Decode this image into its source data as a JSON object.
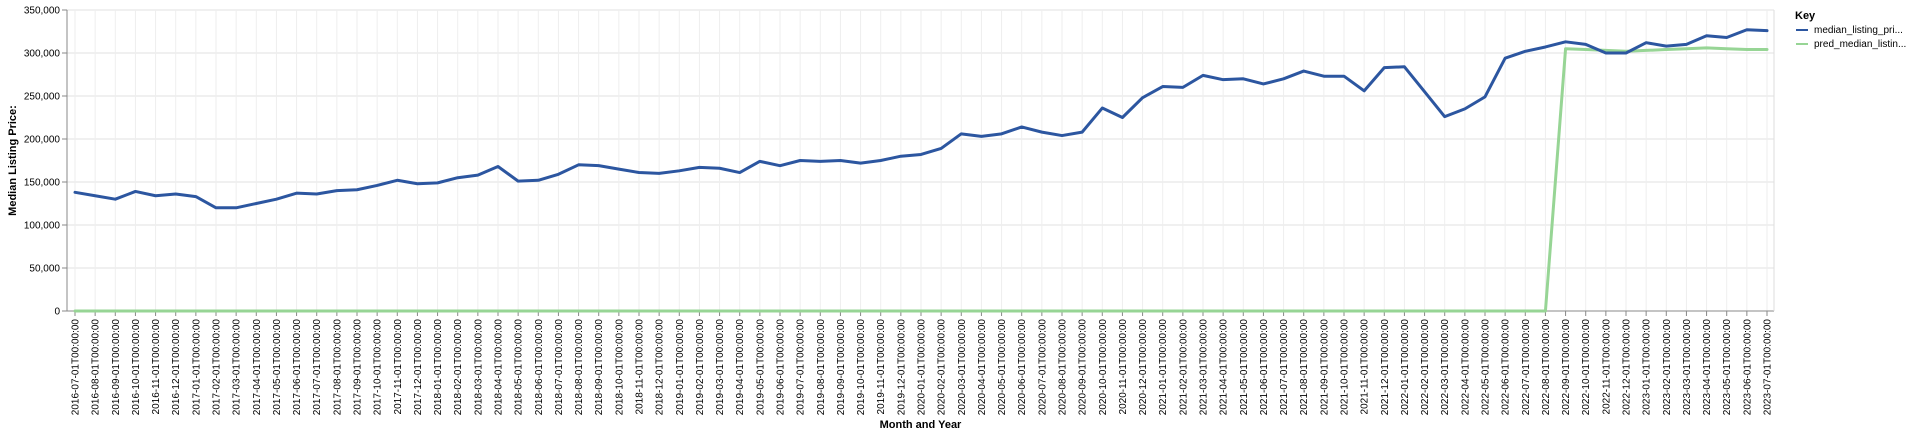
{
  "chart_data": {
    "type": "line",
    "xlabel": "Month and Year",
    "ylabel": "Median Listing Price:",
    "ylim": [
      0,
      350000
    ],
    "y_ticks": [
      0,
      50000,
      100000,
      150000,
      200000,
      250000,
      300000,
      350000
    ],
    "y_tick_labels": [
      "0",
      "50,000",
      "100,000",
      "150,000",
      "200,000",
      "250,000",
      "300,000",
      "350,000"
    ],
    "grid": true,
    "legend": {
      "title": "Key",
      "position": "top-right"
    },
    "categories": [
      "2016-07-01T00:00:00",
      "2016-08-01T00:00:00",
      "2016-09-01T00:00:00",
      "2016-10-01T00:00:00",
      "2016-11-01T00:00:00",
      "2016-12-01T00:00:00",
      "2017-01-01T00:00:00",
      "2017-02-01T00:00:00",
      "2017-03-01T00:00:00",
      "2017-04-01T00:00:00",
      "2017-05-01T00:00:00",
      "2017-06-01T00:00:00",
      "2017-07-01T00:00:00",
      "2017-08-01T00:00:00",
      "2017-09-01T00:00:00",
      "2017-10-01T00:00:00",
      "2017-11-01T00:00:00",
      "2017-12-01T00:00:00",
      "2018-01-01T00:00:00",
      "2018-02-01T00:00:00",
      "2018-03-01T00:00:00",
      "2018-04-01T00:00:00",
      "2018-05-01T00:00:00",
      "2018-06-01T00:00:00",
      "2018-07-01T00:00:00",
      "2018-08-01T00:00:00",
      "2018-09-01T00:00:00",
      "2018-10-01T00:00:00",
      "2018-11-01T00:00:00",
      "2018-12-01T00:00:00",
      "2019-01-01T00:00:00",
      "2019-02-01T00:00:00",
      "2019-03-01T00:00:00",
      "2019-04-01T00:00:00",
      "2019-05-01T00:00:00",
      "2019-06-01T00:00:00",
      "2019-07-01T00:00:00",
      "2019-08-01T00:00:00",
      "2019-09-01T00:00:00",
      "2019-10-01T00:00:00",
      "2019-11-01T00:00:00",
      "2019-12-01T00:00:00",
      "2020-01-01T00:00:00",
      "2020-02-01T00:00:00",
      "2020-03-01T00:00:00",
      "2020-04-01T00:00:00",
      "2020-05-01T00:00:00",
      "2020-06-01T00:00:00",
      "2020-07-01T00:00:00",
      "2020-08-01T00:00:00",
      "2020-09-01T00:00:00",
      "2020-10-01T00:00:00",
      "2020-11-01T00:00:00",
      "2020-12-01T00:00:00",
      "2021-01-01T00:00:00",
      "2021-02-01T00:00:00",
      "2021-03-01T00:00:00",
      "2021-04-01T00:00:00",
      "2021-05-01T00:00:00",
      "2021-06-01T00:00:00",
      "2021-07-01T00:00:00",
      "2021-08-01T00:00:00",
      "2021-09-01T00:00:00",
      "2021-10-01T00:00:00",
      "2021-11-01T00:00:00",
      "2021-12-01T00:00:00",
      "2022-01-01T00:00:00",
      "2022-02-01T00:00:00",
      "2022-03-01T00:00:00",
      "2022-04-01T00:00:00",
      "2022-05-01T00:00:00",
      "2022-06-01T00:00:00",
      "2022-07-01T00:00:00",
      "2022-08-01T00:00:00",
      "2022-09-01T00:00:00",
      "2022-10-01T00:00:00",
      "2022-11-01T00:00:00",
      "2022-12-01T00:00:00",
      "2023-01-01T00:00:00",
      "2023-02-01T00:00:00",
      "2023-03-01T00:00:00",
      "2023-04-01T00:00:00",
      "2023-05-01T00:00:00",
      "2023-06-01T00:00:00",
      "2023-07-01T00:00:00"
    ],
    "series": [
      {
        "name": "median_listing_pri...",
        "color": "#2c56a0",
        "values": [
          138000,
          134000,
          130000,
          139000,
          134000,
          136000,
          133000,
          120000,
          120000,
          125000,
          130000,
          137000,
          136000,
          140000,
          141000,
          146000,
          152000,
          148000,
          149000,
          155000,
          158000,
          168000,
          151000,
          152000,
          159000,
          170000,
          169000,
          165000,
          161000,
          160000,
          163000,
          167000,
          166000,
          161000,
          174000,
          169000,
          175000,
          174000,
          175000,
          172000,
          175000,
          180000,
          182000,
          189000,
          206000,
          203000,
          206000,
          214000,
          208000,
          204000,
          208000,
          236000,
          225000,
          248000,
          261000,
          260000,
          274000,
          269000,
          270000,
          264000,
          270000,
          279000,
          273000,
          273000,
          256000,
          283000,
          284000,
          255000,
          226000,
          235000,
          249000,
          294000,
          302000,
          307000,
          313000,
          310000,
          300000,
          300000,
          312000,
          308000,
          310000,
          320000,
          318000,
          327000,
          326000
        ]
      },
      {
        "name": "pred_median_listin...",
        "color": "#97d595",
        "values": [
          0,
          0,
          0,
          0,
          0,
          0,
          0,
          0,
          0,
          0,
          0,
          0,
          0,
          0,
          0,
          0,
          0,
          0,
          0,
          0,
          0,
          0,
          0,
          0,
          0,
          0,
          0,
          0,
          0,
          0,
          0,
          0,
          0,
          0,
          0,
          0,
          0,
          0,
          0,
          0,
          0,
          0,
          0,
          0,
          0,
          0,
          0,
          0,
          0,
          0,
          0,
          0,
          0,
          0,
          0,
          0,
          0,
          0,
          0,
          0,
          0,
          0,
          0,
          0,
          0,
          0,
          0,
          0,
          0,
          0,
          0,
          0,
          0,
          0,
          305000,
          304000,
          303000,
          302000,
          303000,
          304000,
          305000,
          306000,
          305000,
          304000,
          304000
        ]
      }
    ]
  }
}
